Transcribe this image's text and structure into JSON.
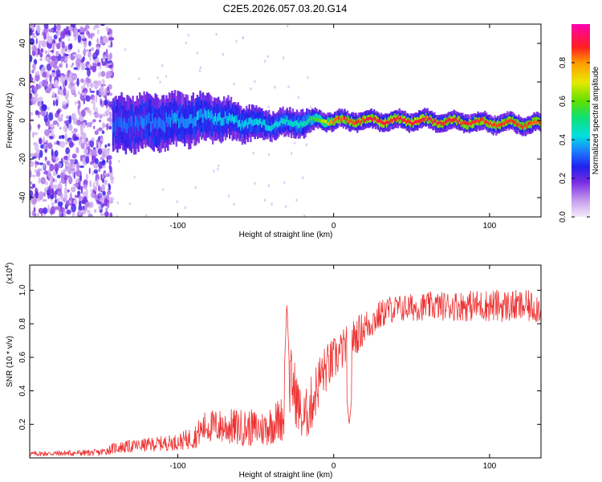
{
  "figure": {
    "title": "C2E5.2026.057.03.20.G14"
  },
  "chart_data": [
    {
      "type": "heatmap",
      "name": "spectrogram",
      "xlabel": "Height of straight line (km)",
      "ylabel": "Frequency (Hz)",
      "xlim": [
        -195,
        133
      ],
      "ylim": [
        -50,
        50
      ],
      "x_ticks": [
        -100,
        0,
        100
      ],
      "y_ticks": [
        -40,
        -20,
        0,
        20,
        40
      ],
      "colorbar": {
        "label": "Normalized spectral amplitude",
        "range": [
          0,
          1
        ],
        "ticks": [
          "0.0",
          "0.2",
          "0.4",
          "0.6",
          "0.8"
        ],
        "tick_values": [
          0.0,
          0.2,
          0.4,
          0.6,
          0.8
        ]
      },
      "structure": {
        "noise_region_x": [
          -195,
          -142
        ],
        "signal_track": [
          {
            "x": -142,
            "freq": -2,
            "amp": 0.3,
            "spread": 6
          },
          {
            "x": -110,
            "freq": -1,
            "amp": 0.35,
            "spread": 6
          },
          {
            "x": -80,
            "freq": 2,
            "amp": 0.38,
            "spread": 5
          },
          {
            "x": -60,
            "freq": -1,
            "amp": 0.4,
            "spread": 4
          },
          {
            "x": -40,
            "freq": -2,
            "amp": 0.42,
            "spread": 3
          },
          {
            "x": -20,
            "freq": -1,
            "amp": 0.45,
            "spread": 3
          },
          {
            "x": -10,
            "freq": 0,
            "amp": 0.6,
            "spread": 2
          },
          {
            "x": 0,
            "freq": 0,
            "amp": 0.85,
            "spread": 2
          },
          {
            "x": 30,
            "freq": 0,
            "amp": 0.9,
            "spread": 2
          },
          {
            "x": 60,
            "freq": 0,
            "amp": 0.9,
            "spread": 2
          },
          {
            "x": 90,
            "freq": -1,
            "amp": 0.88,
            "spread": 2
          },
          {
            "x": 133,
            "freq": -2,
            "amp": 0.85,
            "spread": 2
          }
        ]
      }
    },
    {
      "type": "line",
      "name": "snr",
      "xlabel": "Height of straight line (km)",
      "ylabel": "SNR (10 * v/v)",
      "scale_label": "(x10",
      "scale_exponent": "4",
      "scale_suffix": ")",
      "xlim": [
        -195,
        133
      ],
      "ylim": [
        0,
        1.15
      ],
      "x_ticks": [
        -100,
        0,
        100
      ],
      "y_ticks": [
        0.2,
        0.4,
        0.6,
        0.8,
        1.0
      ],
      "y_tick_labels": [
        "0.2",
        "0.4",
        "0.6",
        "0.8",
        "1.0"
      ],
      "color": "#ee3333",
      "envelope": [
        {
          "x": -195,
          "base": 0.02,
          "noise": 0.02
        },
        {
          "x": -150,
          "base": 0.025,
          "noise": 0.03
        },
        {
          "x": -140,
          "base": 0.05,
          "noise": 0.05
        },
        {
          "x": -100,
          "base": 0.08,
          "noise": 0.07
        },
        {
          "x": -90,
          "base": 0.1,
          "noise": 0.1
        },
        {
          "x": -82,
          "base": 0.16,
          "noise": 0.14
        },
        {
          "x": -65,
          "base": 0.15,
          "noise": 0.16
        },
        {
          "x": -45,
          "base": 0.14,
          "noise": 0.16
        },
        {
          "x": -32,
          "base": 0.2,
          "noise": 0.2
        },
        {
          "x": -27,
          "base": 0.4,
          "noise": 0.3
        },
        {
          "x": -20,
          "base": 0.18,
          "noise": 0.2
        },
        {
          "x": -15,
          "base": 0.25,
          "noise": 0.25
        },
        {
          "x": -8,
          "base": 0.45,
          "noise": 0.22
        },
        {
          "x": 5,
          "base": 0.6,
          "noise": 0.18
        },
        {
          "x": 20,
          "base": 0.75,
          "noise": 0.15
        },
        {
          "x": 35,
          "base": 0.86,
          "noise": 0.12
        },
        {
          "x": 60,
          "base": 0.88,
          "noise": 0.12
        },
        {
          "x": 100,
          "base": 0.88,
          "noise": 0.14
        },
        {
          "x": 133,
          "base": 0.87,
          "noise": 0.14
        }
      ],
      "annotated_peaks": [
        {
          "x": -30,
          "y": 0.93
        },
        {
          "x": 10,
          "y": 0.2
        }
      ]
    }
  ]
}
